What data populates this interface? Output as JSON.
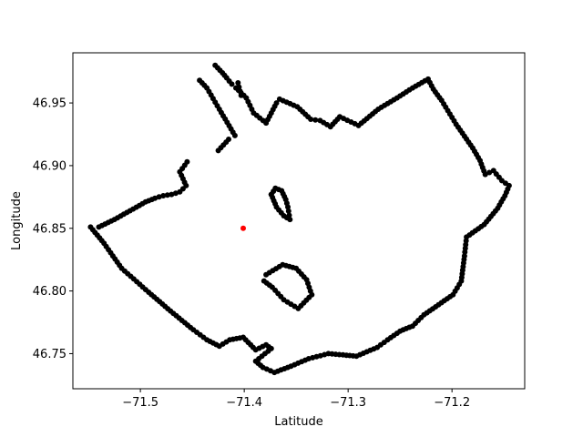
{
  "chart_data": {
    "type": "scatter",
    "title": "",
    "xlabel": "Latitude",
    "ylabel": "Longitude",
    "xlim": [
      -71.565,
      -71.13
    ],
    "ylim": [
      46.722,
      46.99
    ],
    "grid": false,
    "xticks": [
      {
        "value": -71.5,
        "label": "−71.5"
      },
      {
        "value": -71.4,
        "label": "−71.4"
      },
      {
        "value": -71.3,
        "label": "−71.3"
      },
      {
        "value": -71.2,
        "label": "−71.2"
      }
    ],
    "yticks": [
      {
        "value": 46.75,
        "label": "46.75"
      },
      {
        "value": 46.8,
        "label": "46.80"
      },
      {
        "value": 46.85,
        "label": "46.85"
      },
      {
        "value": 46.9,
        "label": "46.90"
      },
      {
        "value": 46.95,
        "label": "46.95"
      }
    ],
    "series": [
      {
        "color": "#000000",
        "paths": [
          [
            [
              -71.548,
              46.851
            ],
            [
              -71.535,
              46.838
            ],
            [
              -71.518,
              46.818
            ],
            [
              -71.492,
              46.799
            ],
            [
              -71.471,
              46.784
            ],
            [
              -71.449,
              46.769
            ],
            [
              -71.436,
              46.761
            ],
            [
              -71.424,
              46.756
            ],
            [
              -71.414,
              46.761
            ],
            [
              -71.401,
              46.763
            ],
            [
              -71.389,
              46.753
            ],
            [
              -71.379,
              46.757
            ],
            [
              -71.374,
              46.754
            ],
            [
              -71.389,
              46.744
            ],
            [
              -71.382,
              46.739
            ],
            [
              -71.371,
              46.735
            ],
            [
              -71.355,
              46.74
            ],
            [
              -71.338,
              46.746
            ],
            [
              -71.319,
              46.75
            ],
            [
              -71.305,
              46.749
            ],
            [
              -71.292,
              46.748
            ],
            [
              -71.272,
              46.755
            ],
            [
              -71.262,
              46.761
            ],
            [
              -71.25,
              46.768
            ],
            [
              -71.238,
              46.772
            ],
            [
              -71.227,
              46.781
            ],
            [
              -71.213,
              46.789
            ],
            [
              -71.199,
              46.797
            ],
            [
              -71.191,
              46.808
            ],
            [
              -71.188,
              46.828
            ],
            [
              -71.186,
              46.843
            ],
            [
              -71.169,
              46.853
            ],
            [
              -71.156,
              46.866
            ],
            [
              -71.149,
              46.876
            ],
            [
              -71.145,
              46.884
            ],
            [
              -71.152,
              46.888
            ],
            [
              -71.16,
              46.896
            ],
            [
              -71.168,
              46.893
            ],
            [
              -71.173,
              46.904
            ],
            [
              -71.18,
              46.914
            ],
            [
              -71.196,
              46.933
            ],
            [
              -71.21,
              46.952
            ],
            [
              -71.218,
              46.961
            ],
            [
              -71.223,
              46.969
            ],
            [
              -71.238,
              46.962
            ],
            [
              -71.253,
              46.954
            ],
            [
              -71.271,
              46.945
            ],
            [
              -71.29,
              46.932
            ],
            [
              -71.308,
              46.939
            ],
            [
              -71.317,
              46.931
            ],
            [
              -71.327,
              46.936
            ],
            [
              -71.336,
              46.937
            ],
            [
              -71.349,
              46.947
            ],
            [
              -71.366,
              46.953
            ]
          ],
          [
            [
              -71.369,
              46.95
            ],
            [
              -71.379,
              46.934
            ],
            [
              -71.391,
              46.942
            ],
            [
              -71.398,
              46.954
            ],
            [
              -71.408,
              46.962
            ],
            [
              -71.412,
              46.965
            ],
            [
              -71.417,
              46.97
            ],
            [
              -71.421,
              46.974
            ],
            [
              -71.428,
              46.98
            ]
          ],
          [
            [
              -71.409,
              46.924
            ],
            [
              -71.424,
              46.945
            ],
            [
              -71.436,
              46.962
            ],
            [
              -71.443,
              46.968
            ]
          ],
          [
            [
              -71.403,
              46.956
            ],
            [
              -71.406,
              46.966
            ]
          ],
          [
            [
              -71.415,
              46.921
            ],
            [
              -71.425,
              46.912
            ]
          ],
          [
            [
              -71.455,
              46.903
            ],
            [
              -71.462,
              46.895
            ],
            [
              -71.456,
              46.884
            ],
            [
              -71.462,
              46.879
            ],
            [
              -71.47,
              46.877
            ],
            [
              -71.478,
              46.876
            ],
            [
              -71.486,
              46.874
            ],
            [
              -71.495,
              46.871
            ],
            [
              -71.51,
              46.864
            ],
            [
              -71.525,
              46.857
            ],
            [
              -71.54,
              46.851
            ]
          ],
          [
            [
              -71.374,
              46.877
            ],
            [
              -71.369,
              46.867
            ],
            [
              -71.362,
              46.86
            ],
            [
              -71.356,
              46.857
            ],
            [
              -71.358,
              46.867
            ],
            [
              -71.36,
              46.873
            ],
            [
              -71.364,
              46.88
            ],
            [
              -71.37,
              46.882
            ],
            [
              -71.374,
              46.877
            ]
          ],
          [
            [
              -71.379,
              46.813
            ],
            [
              -71.363,
              46.821
            ],
            [
              -71.35,
              46.818
            ],
            [
              -71.34,
              46.809
            ],
            [
              -71.335,
              46.797
            ],
            [
              -71.348,
              46.786
            ],
            [
              -71.362,
              46.793
            ],
            [
              -71.373,
              46.803
            ],
            [
              -71.381,
              46.808
            ]
          ]
        ]
      },
      {
        "color": "#ff0000",
        "paths": [
          [
            [
              -71.401,
              46.85
            ]
          ]
        ]
      }
    ]
  }
}
